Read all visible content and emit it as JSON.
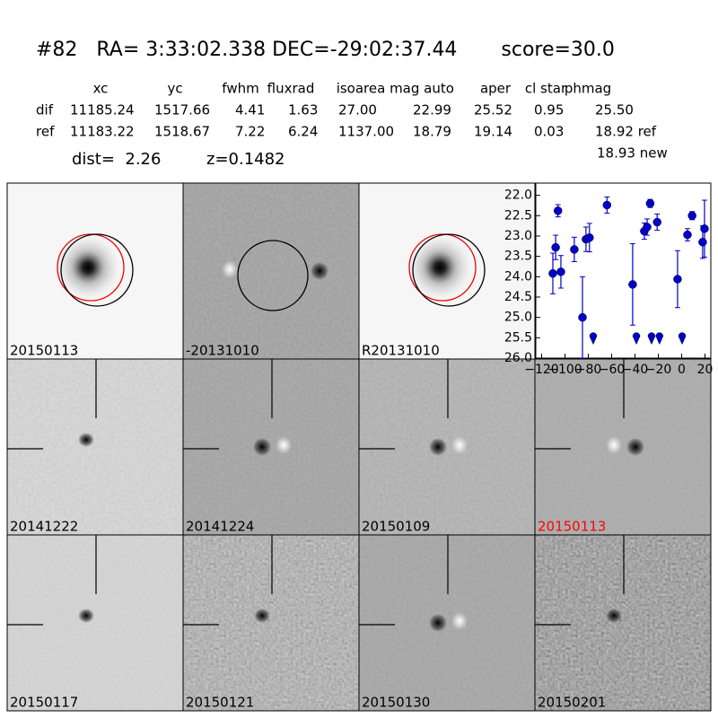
{
  "header": {
    "title": "#82   RA= 3:33:02.338 DEC=-29:02:37.44       score=30.0"
  },
  "table": {
    "columns": [
      "xc",
      "yc",
      "fwhm",
      "fluxrad",
      "isoarea",
      "mag auto",
      "aper",
      "cl star",
      "phmag"
    ],
    "rows": [
      [
        "dif",
        "11185.24",
        "1517.66",
        "4.41",
        "1.63",
        "27.00",
        "22.99",
        "25.52",
        "0.95",
        "25.50"
      ],
      [
        "ref",
        "11183.22",
        "1518.67",
        "7.22",
        "6.24",
        "1137.00",
        "18.79",
        "19.14",
        "0.03",
        "18.92 ref"
      ]
    ],
    "extra": "18.93 new"
  },
  "dist": "dist=  2.26",
  "z": "z=0.1482",
  "panels": [
    {
      "label": "20150113"
    },
    {
      "label": "-20131010"
    },
    {
      "label": "R20131010"
    },
    {
      "label": "20141222"
    },
    {
      "label": "20141224"
    },
    {
      "label": "20150109"
    },
    {
      "label": "20150113",
      "color": "#ff0000"
    },
    {
      "label": "20150117"
    },
    {
      "label": "20150121"
    },
    {
      "label": "20150130"
    },
    {
      "label": "20150201"
    }
  ],
  "chart_data": {
    "type": "errorbar",
    "color": "#0000cc",
    "xlim": [
      -125,
      25
    ],
    "ylim": [
      26.0,
      21.7
    ],
    "xticks": [
      {
        "value": -120,
        "label": "−120"
      },
      {
        "value": -100,
        "label": "−100"
      },
      {
        "value": -80,
        "label": "−80"
      },
      {
        "value": -60,
        "label": "−60"
      },
      {
        "value": -40,
        "label": "−40"
      },
      {
        "value": -20,
        "label": "−20"
      },
      0,
      20
    ],
    "yticks": [
      {
        "value": 22.0,
        "label": "22.0"
      },
      {
        "value": 22.5,
        "label": "22.5"
      },
      {
        "value": 23.0,
        "label": "23.0"
      },
      {
        "value": 23.5,
        "label": "23.5"
      },
      {
        "value": 24.0,
        "label": "24.0"
      },
      {
        "value": 24.5,
        "label": "24.5"
      },
      {
        "value": 25.0,
        "label": "25.0"
      },
      {
        "value": 25.5,
        "label": "25.5"
      },
      {
        "value": 26.0,
        "label": "26.0"
      }
    ],
    "points": {
      "x": [
        -110.4,
        -108,
        -106,
        -103.5,
        -92,
        -85,
        -82,
        -79,
        -64,
        -42,
        -32,
        -29.6,
        -27,
        -21,
        -3.5,
        5,
        9,
        18,
        19.6
      ],
      "values": [
        23.92,
        23.28,
        22.38,
        23.88,
        23.33,
        25.0,
        23.08,
        23.04,
        22.24,
        24.19,
        22.88,
        22.78,
        22.2,
        22.66,
        24.06,
        22.97,
        22.5,
        23.15,
        22.82
      ],
      "errors": [
        0.5,
        0.3,
        0.15,
        0.4,
        0.3,
        1.0,
        0.3,
        0.35,
        0.2,
        1.0,
        0.2,
        0.2,
        0.1,
        0.2,
        0.7,
        0.15,
        0.1,
        0.4,
        0.7
      ]
    },
    "upper_limits": {
      "x": [
        -75.8,
        -38.8,
        -25.8,
        -19,
        0.4
      ],
      "values": [
        25.55,
        25.55,
        25.55,
        25.55,
        25.55
      ]
    }
  }
}
